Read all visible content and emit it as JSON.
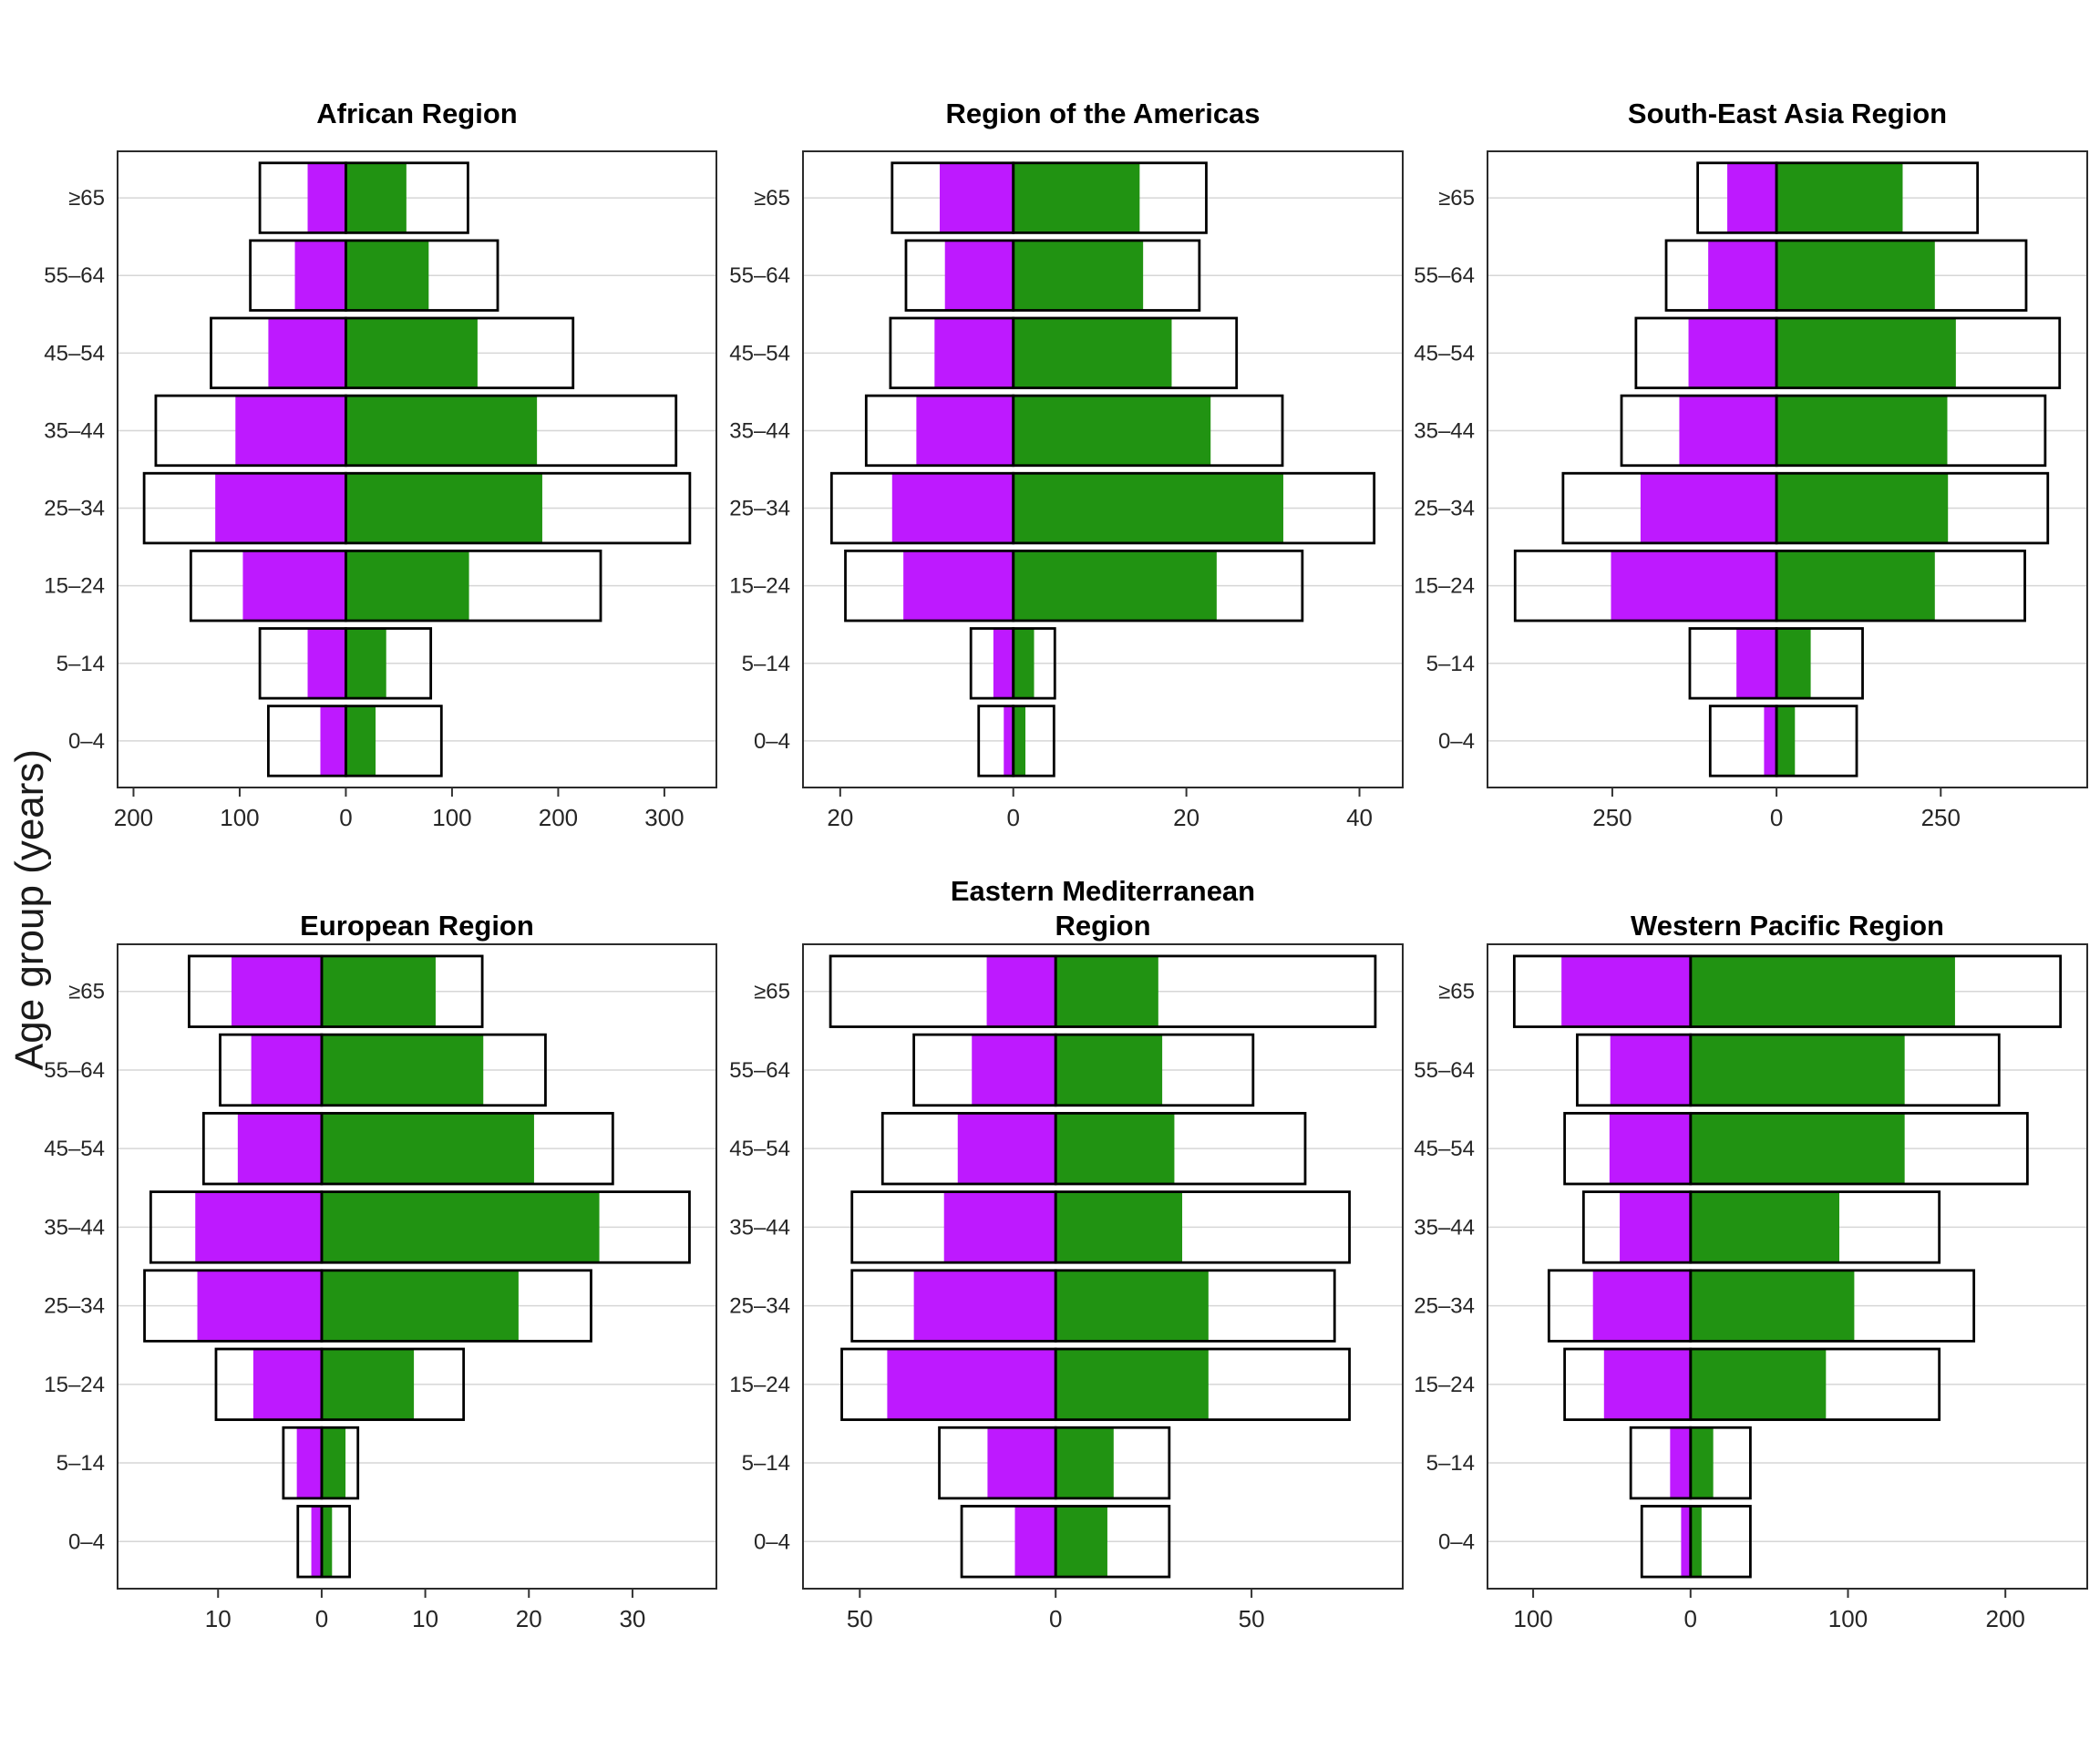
{
  "chart_data": {
    "type": "bar",
    "subtype": "population-pyramid-grid",
    "y_axis_label": "Age group (years)",
    "age_groups_top_to_bottom": [
      "≥65",
      "55–64",
      "45–54",
      "35–44",
      "25–34",
      "15–24",
      "5–14",
      "0–4"
    ],
    "colors": {
      "fill_left": "#BE19FF",
      "fill_right": "#219312",
      "box_stroke": "#000000",
      "gridline": "#D6D6D6",
      "panel_border": "#2B2B2B",
      "tick": "#333333",
      "text": "#262626"
    },
    "legend": "none",
    "grid": "horizontal major gridlines only",
    "panels": [
      {
        "title": "African Region",
        "xlim": [
          -215,
          349
        ],
        "xticks": [
          -200,
          -100,
          0,
          100,
          200,
          300
        ],
        "rows": [
          {
            "age": "≥65",
            "box_left": 81,
            "fill_left": 36,
            "fill_right": 57,
            "box_right": 115
          },
          {
            "age": "55–64",
            "box_left": 90,
            "fill_left": 48,
            "fill_right": 78,
            "box_right": 143
          },
          {
            "age": "45–54",
            "box_left": 127,
            "fill_left": 73,
            "fill_right": 124,
            "box_right": 214
          },
          {
            "age": "35–44",
            "box_left": 179,
            "fill_left": 104,
            "fill_right": 180,
            "box_right": 311
          },
          {
            "age": "25–34",
            "box_left": 190,
            "fill_left": 123,
            "fill_right": 185,
            "box_right": 324
          },
          {
            "age": "15–24",
            "box_left": 146,
            "fill_left": 97,
            "fill_right": 116,
            "box_right": 240
          },
          {
            "age": "5–14",
            "box_left": 81,
            "fill_left": 36,
            "fill_right": 38,
            "box_right": 80
          },
          {
            "age": "0–4",
            "box_left": 73,
            "fill_left": 24,
            "fill_right": 28,
            "box_right": 90
          }
        ]
      },
      {
        "title": "Region of the Americas",
        "xlim": [
          -24.3,
          45
        ],
        "xticks": [
          -20,
          0,
          20,
          40
        ],
        "rows": [
          {
            "age": "≥65",
            "box_left": 14.0,
            "fill_left": 8.5,
            "fill_right": 14.6,
            "box_right": 22.3
          },
          {
            "age": "55–64",
            "box_left": 12.4,
            "fill_left": 7.9,
            "fill_right": 15.0,
            "box_right": 21.5
          },
          {
            "age": "45–54",
            "box_left": 14.2,
            "fill_left": 9.1,
            "fill_right": 18.3,
            "box_right": 25.8
          },
          {
            "age": "35–44",
            "box_left": 17.0,
            "fill_left": 11.2,
            "fill_right": 22.8,
            "box_right": 31.1
          },
          {
            "age": "25–34",
            "box_left": 21.0,
            "fill_left": 14.0,
            "fill_right": 31.2,
            "box_right": 41.7
          },
          {
            "age": "15–24",
            "box_left": 19.4,
            "fill_left": 12.7,
            "fill_right": 23.5,
            "box_right": 33.4
          },
          {
            "age": "5–14",
            "box_left": 4.9,
            "fill_left": 2.3,
            "fill_right": 2.4,
            "box_right": 4.8
          },
          {
            "age": "0–4",
            "box_left": 4.0,
            "fill_left": 1.1,
            "fill_right": 1.4,
            "box_right": 4.7
          }
        ]
      },
      {
        "title": "South-East Asia Region",
        "xlim": [
          -440,
          473
        ],
        "xticks": [
          -250,
          0,
          250
        ],
        "rows": [
          {
            "age": "≥65",
            "box_left": 120,
            "fill_left": 75,
            "fill_right": 192,
            "box_right": 306
          },
          {
            "age": "55–64",
            "box_left": 168,
            "fill_left": 104,
            "fill_right": 241,
            "box_right": 380
          },
          {
            "age": "45–54",
            "box_left": 214,
            "fill_left": 134,
            "fill_right": 273,
            "box_right": 431
          },
          {
            "age": "35–44",
            "box_left": 236,
            "fill_left": 148,
            "fill_right": 260,
            "box_right": 409
          },
          {
            "age": "25–34",
            "box_left": 325,
            "fill_left": 207,
            "fill_right": 261,
            "box_right": 413
          },
          {
            "age": "15–24",
            "box_left": 398,
            "fill_left": 252,
            "fill_right": 241,
            "box_right": 378
          },
          {
            "age": "5–14",
            "box_left": 132,
            "fill_left": 61,
            "fill_right": 52,
            "box_right": 131
          },
          {
            "age": "0–4",
            "box_left": 101,
            "fill_left": 19,
            "fill_right": 28,
            "box_right": 122
          }
        ]
      },
      {
        "title": "European Region",
        "xlim": [
          -19.7,
          38.1
        ],
        "xticks": [
          -10,
          0,
          10,
          20,
          30
        ],
        "rows": [
          {
            "age": "≥65",
            "box_left": 12.8,
            "fill_left": 8.7,
            "fill_right": 11.0,
            "box_right": 15.5
          },
          {
            "age": "55–64",
            "box_left": 9.8,
            "fill_left": 6.8,
            "fill_right": 15.6,
            "box_right": 21.6
          },
          {
            "age": "45–54",
            "box_left": 11.4,
            "fill_left": 8.1,
            "fill_right": 20.5,
            "box_right": 28.1
          },
          {
            "age": "35–44",
            "box_left": 16.5,
            "fill_left": 12.2,
            "fill_right": 26.8,
            "box_right": 35.5
          },
          {
            "age": "25–34",
            "box_left": 17.1,
            "fill_left": 12.0,
            "fill_right": 19.0,
            "box_right": 26.0
          },
          {
            "age": "15–24",
            "box_left": 10.2,
            "fill_left": 6.6,
            "fill_right": 8.9,
            "box_right": 13.7
          },
          {
            "age": "5–14",
            "box_left": 3.7,
            "fill_left": 2.4,
            "fill_right": 2.3,
            "box_right": 3.5
          },
          {
            "age": "0–4",
            "box_left": 2.3,
            "fill_left": 1.0,
            "fill_right": 1.0,
            "box_right": 2.7
          }
        ]
      },
      {
        "title": "Eastern Mediterranean\nRegion",
        "xlim": [
          -64.5,
          88.6
        ],
        "xticks": [
          -50,
          0,
          50
        ],
        "rows": [
          {
            "age": "≥65",
            "box_left": 57.5,
            "fill_left": 17.6,
            "fill_right": 26.2,
            "box_right": 81.6
          },
          {
            "age": "55–64",
            "box_left": 36.2,
            "fill_left": 21.4,
            "fill_right": 27.2,
            "box_right": 50.4
          },
          {
            "age": "45–54",
            "box_left": 44.2,
            "fill_left": 25.0,
            "fill_right": 30.3,
            "box_right": 63.7
          },
          {
            "age": "35–44",
            "box_left": 52.0,
            "fill_left": 28.5,
            "fill_right": 32.3,
            "box_right": 75.0
          },
          {
            "age": "25–34",
            "box_left": 52.0,
            "fill_left": 36.2,
            "fill_right": 39.0,
            "box_right": 71.2
          },
          {
            "age": "15–24",
            "box_left": 54.6,
            "fill_left": 43.0,
            "fill_right": 39.0,
            "box_right": 75.0
          },
          {
            "age": "5–14",
            "box_left": 29.7,
            "fill_left": 17.4,
            "fill_right": 14.8,
            "box_right": 29.0
          },
          {
            "age": "0–4",
            "box_left": 24.0,
            "fill_left": 10.4,
            "fill_right": 13.2,
            "box_right": 29.0
          }
        ]
      },
      {
        "title": "Western Pacific Region",
        "xlim": [
          -129,
          252
        ],
        "xticks": [
          -100,
          0,
          100,
          200
        ],
        "rows": [
          {
            "age": "≥65",
            "box_left": 112,
            "fill_left": 82,
            "fill_right": 168,
            "box_right": 235
          },
          {
            "age": "55–64",
            "box_left": 72,
            "fill_left": 51,
            "fill_right": 136,
            "box_right": 196
          },
          {
            "age": "45–54",
            "box_left": 80,
            "fill_left": 51.5,
            "fill_right": 136,
            "box_right": 214
          },
          {
            "age": "35–44",
            "box_left": 68,
            "fill_left": 45,
            "fill_right": 94.5,
            "box_right": 158
          },
          {
            "age": "25–34",
            "box_left": 90,
            "fill_left": 62,
            "fill_right": 104,
            "box_right": 180
          },
          {
            "age": "15–24",
            "box_left": 80,
            "fill_left": 55,
            "fill_right": 86,
            "box_right": 158
          },
          {
            "age": "5–14",
            "box_left": 38,
            "fill_left": 13,
            "fill_right": 14.4,
            "box_right": 38
          },
          {
            "age": "0–4",
            "box_left": 31,
            "fill_left": 6,
            "fill_right": 7,
            "box_right": 38
          }
        ]
      }
    ]
  }
}
